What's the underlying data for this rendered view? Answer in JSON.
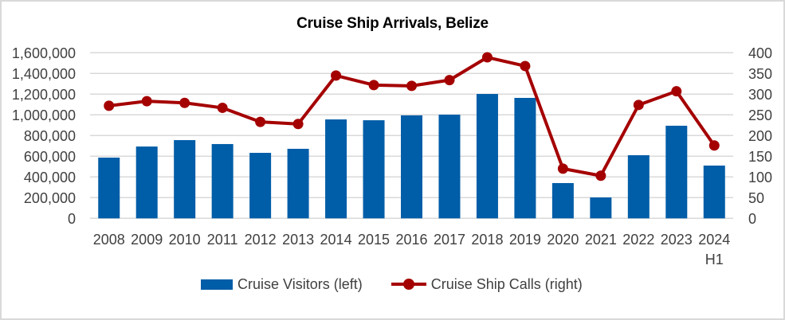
{
  "chart_data": {
    "type": "bar+line",
    "title": "Cruise Ship Arrivals, Belize",
    "categories": [
      "2008",
      "2009",
      "2010",
      "2011",
      "2012",
      "2013",
      "2014",
      "2015",
      "2016",
      "2017",
      "2018",
      "2019",
      "2020",
      "2021",
      "2022",
      "2023",
      "2024\nH1"
    ],
    "series": [
      {
        "name": "Cruise Visitors (left)",
        "type": "bar",
        "axis": "left",
        "color": "#005DA8",
        "values": [
          587000,
          694000,
          756000,
          718000,
          633000,
          672000,
          956000,
          948000,
          995000,
          1002000,
          1202000,
          1164000,
          341000,
          202000,
          610000,
          895000,
          510000
        ]
      },
      {
        "name": "Cruise Ship Calls (right)",
        "type": "line",
        "axis": "right",
        "color": "#A50000",
        "values": [
          272,
          283,
          279,
          267,
          233,
          228,
          345,
          322,
          320,
          334,
          389,
          368,
          120,
          103,
          274,
          307,
          176
        ]
      }
    ],
    "left_axis": {
      "min": 0,
      "max": 1600000,
      "step": 200000,
      "tick_labels": [
        "0",
        "200,000",
        "400,000",
        "600,000",
        "800,000",
        "1,000,000",
        "1,200,000",
        "1,400,000",
        "1,600,000"
      ]
    },
    "right_axis": {
      "min": 0,
      "max": 400,
      "step": 50,
      "tick_labels": [
        "0",
        "50",
        "100",
        "150",
        "200",
        "250",
        "300",
        "350",
        "400"
      ]
    },
    "xlabel": "",
    "ylabel": "",
    "grid": true,
    "legend_position": "bottom"
  },
  "legend": {
    "bar_label": "Cruise Visitors (left)",
    "line_label": "Cruise Ship Calls (right)"
  }
}
